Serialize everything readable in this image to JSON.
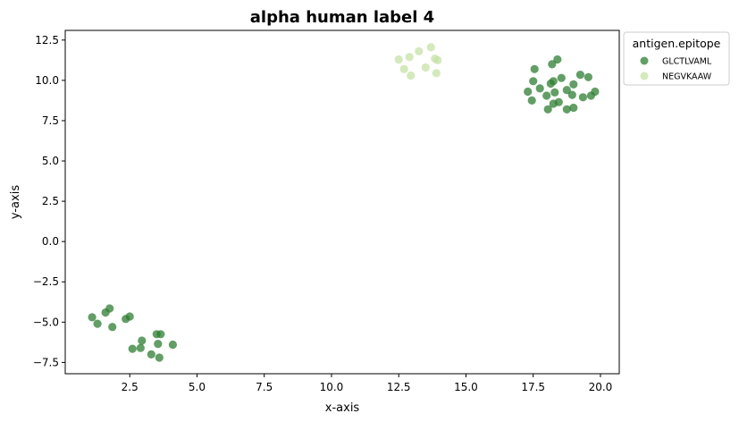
{
  "chart_data": {
    "type": "scatter",
    "title": "alpha human label 4",
    "xlabel": "x-axis",
    "ylabel": "y-axis",
    "xlim": [
      0.1,
      20.7
    ],
    "ylim": [
      -8.2,
      13.1
    ],
    "xticks": [
      2.5,
      5.0,
      7.5,
      10.0,
      12.5,
      15.0,
      17.5,
      20.0
    ],
    "xtick_labels": [
      "2.5",
      "5.0",
      "7.5",
      "10.0",
      "12.5",
      "15.0",
      "17.5",
      "20.0"
    ],
    "yticks": [
      -7.5,
      -5.0,
      -2.5,
      0.0,
      2.5,
      5.0,
      7.5,
      10.0,
      12.5
    ],
    "ytick_labels": [
      "−7.5",
      "−5.0",
      "−2.5",
      "0.0",
      "2.5",
      "5.0",
      "7.5",
      "10.0",
      "12.5"
    ],
    "grid": false,
    "legend": {
      "title": "antigen.epitope",
      "placement": "outside-top-right"
    },
    "series": [
      {
        "name": "GLCTLVAML",
        "color": "#2e7d32",
        "points": [
          [
            1.1,
            -4.7
          ],
          [
            1.3,
            -5.1
          ],
          [
            1.6,
            -4.4
          ],
          [
            1.75,
            -4.15
          ],
          [
            1.85,
            -5.3
          ],
          [
            2.35,
            -4.8
          ],
          [
            2.5,
            -4.65
          ],
          [
            2.6,
            -6.65
          ],
          [
            2.9,
            -6.6
          ],
          [
            2.95,
            -6.15
          ],
          [
            3.3,
            -7.0
          ],
          [
            3.5,
            -5.75
          ],
          [
            3.55,
            -6.35
          ],
          [
            3.6,
            -7.2
          ],
          [
            3.65,
            -5.75
          ],
          [
            4.1,
            -6.4
          ],
          [
            17.3,
            9.3
          ],
          [
            17.45,
            8.75
          ],
          [
            17.5,
            9.95
          ],
          [
            17.55,
            10.7
          ],
          [
            17.75,
            9.5
          ],
          [
            18.0,
            9.05
          ],
          [
            18.05,
            8.2
          ],
          [
            18.15,
            9.8
          ],
          [
            18.2,
            11.0
          ],
          [
            18.25,
            8.55
          ],
          [
            18.25,
            9.95
          ],
          [
            18.3,
            9.25
          ],
          [
            18.4,
            11.3
          ],
          [
            18.45,
            8.65
          ],
          [
            18.55,
            10.15
          ],
          [
            18.75,
            9.4
          ],
          [
            18.75,
            8.2
          ],
          [
            18.95,
            9.1
          ],
          [
            19.0,
            8.3
          ],
          [
            19.0,
            9.75
          ],
          [
            19.25,
            10.35
          ],
          [
            19.35,
            8.95
          ],
          [
            19.55,
            10.2
          ],
          [
            19.65,
            9.05
          ],
          [
            19.8,
            9.3
          ]
        ]
      },
      {
        "name": "NEGVKAAW",
        "color": "#c5e1a5",
        "points": [
          [
            12.5,
            11.3
          ],
          [
            12.7,
            10.7
          ],
          [
            12.9,
            11.45
          ],
          [
            12.95,
            10.3
          ],
          [
            13.25,
            11.8
          ],
          [
            13.5,
            10.8
          ],
          [
            13.7,
            12.05
          ],
          [
            13.85,
            11.35
          ],
          [
            13.95,
            11.25
          ],
          [
            13.9,
            10.45
          ]
        ]
      }
    ]
  }
}
